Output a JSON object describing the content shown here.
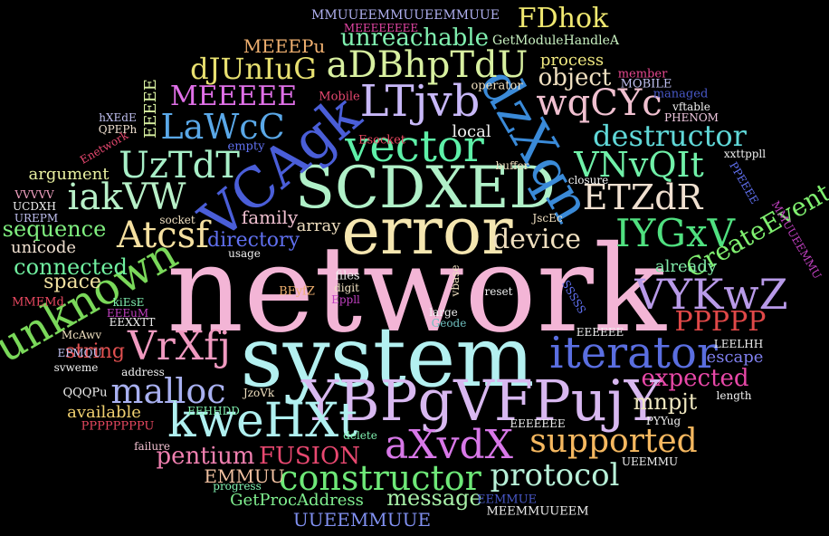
{
  "words": [
    {
      "text": "network",
      "color": "#f3b5d6"
    },
    {
      "text": "system",
      "color": "#b3f0f0"
    },
    {
      "text": "error",
      "color": "#f5e6b0"
    },
    {
      "text": "SCDXED",
      "color": "#b0f0c8"
    },
    {
      "text": "YBPgVFPujY",
      "color": "#d8b8f0"
    },
    {
      "text": "VCAgk",
      "color": "#4a5ed8"
    },
    {
      "text": "dzXqn",
      "color": "#3a8ad8"
    },
    {
      "text": "vector",
      "color": "#5ef0a8"
    },
    {
      "text": "LTjvb",
      "color": "#c8b8f8"
    },
    {
      "text": "aDBhpTdU",
      "color": "#d8f0a0"
    },
    {
      "text": "unknown",
      "color": "#7ad85a"
    },
    {
      "text": "iterator",
      "color": "#5a6ee0"
    },
    {
      "text": "kweHXt",
      "color": "#b0f0f0"
    },
    {
      "text": "aXvdX",
      "color": "#d878e8"
    },
    {
      "text": "VYKwZ",
      "color": "#b89ae8"
    },
    {
      "text": "constructor",
      "color": "#6ee878"
    },
    {
      "text": "supported",
      "color": "#f5b860"
    },
    {
      "text": "protocol",
      "color": "#b8f0d8"
    },
    {
      "text": "malloc",
      "color": "#a8b0f0"
    },
    {
      "text": "VrXfj",
      "color": "#f09ac0"
    },
    {
      "text": "Atcsf",
      "color": "#f5e0a0"
    },
    {
      "text": "UzTdT",
      "color": "#a8f0c8"
    },
    {
      "text": "iakVW",
      "color": "#b8f0c8"
    },
    {
      "text": "LaWcC",
      "color": "#5aa8e8"
    },
    {
      "text": "MEEEEE",
      "color": "#e070e8"
    },
    {
      "text": "dJUnIuG",
      "color": "#e8e070"
    },
    {
      "text": "wqCYc",
      "color": "#f0c0d0"
    },
    {
      "text": "VNvQIt",
      "color": "#70f0a8"
    },
    {
      "text": "destructor",
      "color": "#60d8d8"
    },
    {
      "text": "ETZdR",
      "color": "#f0e0d0"
    },
    {
      "text": "IYGxV",
      "color": "#50e080"
    },
    {
      "text": "device",
      "color": "#f0e0c0"
    },
    {
      "text": "CreateEvent",
      "color": "#80f070"
    },
    {
      "text": "PPPPP",
      "color": "#e04848"
    },
    {
      "text": "FDhok",
      "color": "#f0e870"
    },
    {
      "text": "unreachable",
      "color": "#80f0b0"
    },
    {
      "text": "object",
      "color": "#f0e0c0"
    },
    {
      "text": "process",
      "color": "#f0e880"
    },
    {
      "text": "expected",
      "color": "#e848a8"
    },
    {
      "text": "mnpjt",
      "color": "#f0e8c0"
    },
    {
      "text": "already",
      "color": "#80e8a8"
    },
    {
      "text": "escape",
      "color": "#8080f0"
    },
    {
      "text": "pentium",
      "color": "#f080b0"
    },
    {
      "text": "FUSION",
      "color": "#e84870"
    },
    {
      "text": "message",
      "color": "#a8f0a8"
    },
    {
      "text": "directory",
      "color": "#6070f0"
    },
    {
      "text": "family",
      "color": "#f0c0d0"
    },
    {
      "text": "array",
      "color": "#f0e0c0"
    },
    {
      "text": "local",
      "color": "#f0f0f0"
    },
    {
      "text": "sequence",
      "color": "#80f080"
    },
    {
      "text": "connected",
      "color": "#70f0a0"
    },
    {
      "text": "space",
      "color": "#f0e0a0"
    },
    {
      "text": "string",
      "color": "#e05050"
    },
    {
      "text": "unicode",
      "color": "#f0e0d0"
    },
    {
      "text": "argument",
      "color": "#e8f0a0"
    },
    {
      "text": "available",
      "color": "#f0d070"
    },
    {
      "text": "GetProcAddress",
      "color": "#80f090"
    },
    {
      "text": "UUEEMMUUE",
      "color": "#8090f0"
    },
    {
      "text": "EMMUU",
      "color": "#f0c0a0"
    },
    {
      "text": "MEEEPu",
      "color": "#f0b070"
    },
    {
      "text": "MMUUEEMMUUEEMMUUE",
      "color": "#b0b0f0"
    },
    {
      "text": "MEEEEEEEE",
      "color": "#e848a8"
    },
    {
      "text": "GetModuleHandleA",
      "color": "#c8f0c0"
    },
    {
      "text": "member",
      "color": "#e84890"
    },
    {
      "text": "MOBILE",
      "color": "#c0c0f0"
    },
    {
      "text": "operator",
      "color": "#f0e0c0"
    },
    {
      "text": "managed",
      "color": "#4858c8"
    },
    {
      "text": "vftable",
      "color": "#f0f0f0"
    },
    {
      "text": "PHENOM",
      "color": "#f0c8e0"
    },
    {
      "text": "Mobile",
      "color": "#e84870"
    },
    {
      "text": "Esocket",
      "color": "#e84860"
    },
    {
      "text": "EEEEE",
      "color": "#d8f0a0"
    },
    {
      "text": "hXEdE",
      "color": "#c0c0f0"
    },
    {
      "text": "QPEPh",
      "color": "#f0e0d0"
    },
    {
      "text": "Enetwork",
      "color": "#e84870"
    },
    {
      "text": "empty",
      "color": "#6070f0"
    },
    {
      "text": "buffer",
      "color": "#f0e0c0"
    },
    {
      "text": "closure",
      "color": "#f0f0f0"
    },
    {
      "text": "xxttppll",
      "color": "#f0f0f0"
    },
    {
      "text": "PPEEEE",
      "color": "#6070f0"
    },
    {
      "text": "VVVVV",
      "color": "#f0a0c0"
    },
    {
      "text": "UCDXH",
      "color": "#f0f0f0"
    },
    {
      "text": "UREPM",
      "color": "#c0c0f0"
    },
    {
      "text": "socket",
      "color": "#f0e0c0"
    },
    {
      "text": "usage",
      "color": "#f0f0f0"
    },
    {
      "text": "JscEc",
      "color": "#f0e0c0"
    },
    {
      "text": "MMUUEEMMU",
      "color": "#c040c0"
    },
    {
      "text": "files",
      "color": "#f0f0f0"
    },
    {
      "text": "digit",
      "color": "#f0e0c0"
    },
    {
      "text": "Eppll",
      "color": "#c040c0"
    },
    {
      "text": "BFyfZ",
      "color": "#f0b070"
    },
    {
      "text": "vbase",
      "color": "#f0e0c0"
    },
    {
      "text": "reset",
      "color": "#f0f0f0"
    },
    {
      "text": "SSSSS",
      "color": "#6070f0"
    },
    {
      "text": "MMEMd",
      "color": "#e84860"
    },
    {
      "text": "kiEsE",
      "color": "#80f0b0"
    },
    {
      "text": "EEEuM",
      "color": "#c040c0"
    },
    {
      "text": "EEXXTT",
      "color": "#f0f0f0"
    },
    {
      "text": "large",
      "color": "#f0f0f0"
    },
    {
      "text": "Geode",
      "color": "#70c0c0"
    },
    {
      "text": "EEEEEE",
      "color": "#f0f0f0"
    },
    {
      "text": "McAwv",
      "color": "#f0e0c0"
    },
    {
      "text": "EPMQU",
      "color": "#c0c0f0"
    },
    {
      "text": "svweme",
      "color": "#f0f0f0"
    },
    {
      "text": "address",
      "color": "#f0f0f0"
    },
    {
      "text": "QQQPu",
      "color": "#f0f0f0"
    },
    {
      "text": "JzoVk",
      "color": "#f0e0c0"
    },
    {
      "text": "EEHHDD",
      "color": "#80f0b0"
    },
    {
      "text": "PPPPPPPPU",
      "color": "#e84860"
    },
    {
      "text": "failure",
      "color": "#f0c0d0"
    },
    {
      "text": "delete",
      "color": "#80f0b0"
    },
    {
      "text": "EEEEEEE",
      "color": "#f0f0f0"
    },
    {
      "text": "PYYug",
      "color": "#f0f0f0"
    },
    {
      "text": "LEELHH",
      "color": "#f0f0f0"
    },
    {
      "text": "length",
      "color": "#f0f0f0"
    },
    {
      "text": "UEEMMU",
      "color": "#f0f0f0"
    },
    {
      "text": "progress",
      "color": "#80f0b0"
    },
    {
      "text": "EEMMUE",
      "color": "#4858c8"
    },
    {
      "text": "MEEMMUUEEM",
      "color": "#f0f0f0"
    }
  ]
}
